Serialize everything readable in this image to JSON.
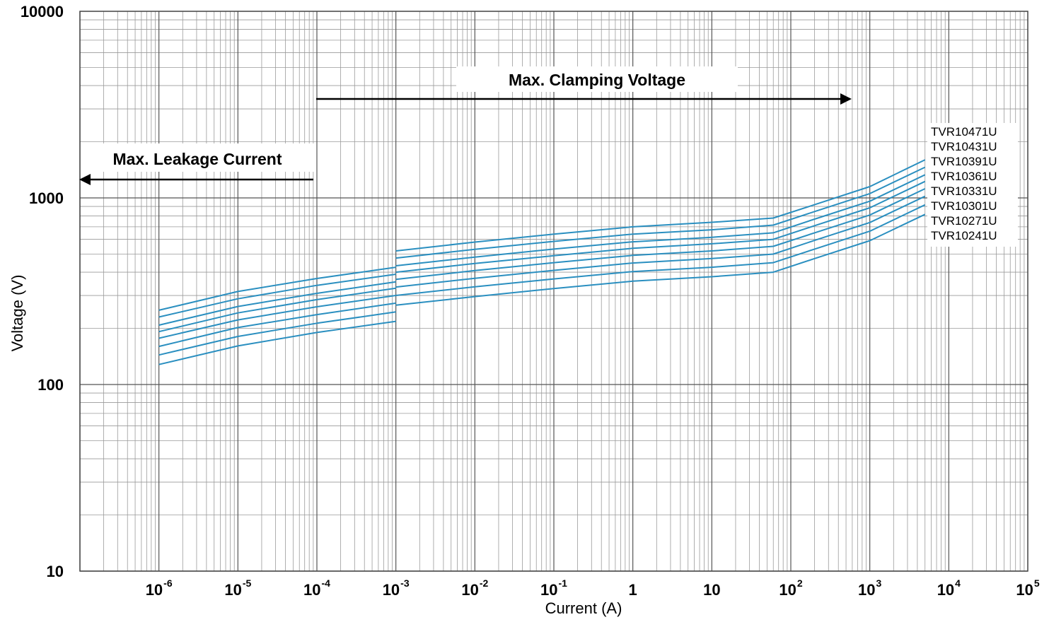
{
  "chart_data": {
    "type": "line",
    "xscale": "log",
    "yscale": "log",
    "xlim": [
      1e-07,
      100000
    ],
    "ylim": [
      10,
      10000
    ],
    "grid": true,
    "xlabel": "Current (A)",
    "ylabel": "Voltage   (V)",
    "y_ticks": [
      {
        "value": 10,
        "label": "10"
      },
      {
        "value": 100,
        "label": "100"
      },
      {
        "value": 1000,
        "label": "1000"
      },
      {
        "value": 10000,
        "label": "10000"
      }
    ],
    "x_ticks": [
      {
        "value": 1e-06,
        "base": "10",
        "exp": "-6"
      },
      {
        "value": 1e-05,
        "base": "10",
        "exp": "-5"
      },
      {
        "value": 0.0001,
        "base": "10",
        "exp": "-4"
      },
      {
        "value": 0.001,
        "base": "10",
        "exp": "-3"
      },
      {
        "value": 0.01,
        "base": "10",
        "exp": "-2"
      },
      {
        "value": 0.1,
        "base": "10",
        "exp": "-1"
      },
      {
        "value": 1,
        "base": "1",
        "exp": ""
      },
      {
        "value": 10,
        "base": "10",
        "exp": ""
      },
      {
        "value": 100,
        "base": "10",
        "exp": "2"
      },
      {
        "value": 1000,
        "base": "10",
        "exp": "3"
      },
      {
        "value": 10000,
        "base": "10",
        "exp": "4"
      },
      {
        "value": 100000,
        "base": "10",
        "exp": "5"
      }
    ],
    "annotations": {
      "clamping": "Max. Clamping Voltage",
      "leakage": "Max. Leakage Current"
    },
    "series_color": "#2a8fc0",
    "series": [
      {
        "name": "TVR10471U",
        "leakage": {
          "x": [
            1e-06,
            1e-05,
            0.0001,
            0.001
          ],
          "y": [
            250,
            315,
            370,
            425
          ]
        },
        "clamping": {
          "x": [
            0.001,
            0.01,
            0.1,
            1,
            10,
            60,
            200,
            1000,
            5000
          ],
          "y": [
            520,
            580,
            640,
            700,
            740,
            780,
            920,
            1150,
            1600
          ]
        }
      },
      {
        "name": "TVR10431U",
        "leakage": {
          "x": [
            1e-06,
            1e-05,
            0.0001,
            0.001
          ],
          "y": [
            230,
            288,
            340,
            390
          ]
        },
        "clamping": {
          "x": [
            0.001,
            0.01,
            0.1,
            1,
            10,
            60,
            200,
            1000,
            5000
          ],
          "y": [
            476,
            530,
            585,
            640,
            675,
            715,
            845,
            1055,
            1460
          ]
        }
      },
      {
        "name": "TVR10391U",
        "leakage": {
          "x": [
            1e-06,
            1e-05,
            0.0001,
            0.001
          ],
          "y": [
            208,
            262,
            308,
            355
          ]
        },
        "clamping": {
          "x": [
            0.001,
            0.01,
            0.1,
            1,
            10,
            60,
            200,
            1000,
            5000
          ],
          "y": [
            433,
            482,
            532,
            582,
            615,
            650,
            770,
            960,
            1330
          ]
        }
      },
      {
        "name": "TVR10361U",
        "leakage": {
          "x": [
            1e-06,
            1e-05,
            0.0001,
            0.001
          ],
          "y": [
            192,
            242,
            285,
            328
          ]
        },
        "clamping": {
          "x": [
            0.001,
            0.01,
            0.1,
            1,
            10,
            60,
            200,
            1000,
            5000
          ],
          "y": [
            400,
            445,
            490,
            537,
            568,
            600,
            710,
            885,
            1225
          ]
        }
      },
      {
        "name": "TVR10331U",
        "leakage": {
          "x": [
            1e-06,
            1e-05,
            0.0001,
            0.001
          ],
          "y": [
            177,
            222,
            261,
            300
          ]
        },
        "clamping": {
          "x": [
            0.001,
            0.01,
            0.1,
            1,
            10,
            60,
            200,
            1000,
            5000
          ],
          "y": [
            366,
            408,
            450,
            492,
            520,
            550,
            650,
            810,
            1120
          ]
        }
      },
      {
        "name": "TVR10301U",
        "leakage": {
          "x": [
            1e-06,
            1e-05,
            0.0001,
            0.001
          ],
          "y": [
            160,
            202,
            237,
            273
          ]
        },
        "clamping": {
          "x": [
            0.001,
            0.01,
            0.1,
            1,
            10,
            60,
            200,
            1000,
            5000
          ],
          "y": [
            333,
            371,
            409,
            448,
            473,
            500,
            592,
            738,
            1020
          ]
        }
      },
      {
        "name": "TVR10271U",
        "leakage": {
          "x": [
            1e-06,
            1e-05,
            0.0001,
            0.001
          ],
          "y": [
            144,
            181,
            213,
            245
          ]
        },
        "clamping": {
          "x": [
            0.001,
            0.01,
            0.1,
            1,
            10,
            60,
            200,
            1000,
            5000
          ],
          "y": [
            300,
            334,
            368,
            403,
            425,
            450,
            532,
            663,
            918
          ]
        }
      },
      {
        "name": "TVR10241U",
        "leakage": {
          "x": [
            1e-06,
            1e-05,
            0.0001,
            0.001
          ],
          "y": [
            128,
            161,
            190,
            218
          ]
        },
        "clamping": {
          "x": [
            0.001,
            0.01,
            0.1,
            1,
            10,
            60,
            200,
            1000,
            5000
          ],
          "y": [
            266,
            296,
            327,
            358,
            378,
            400,
            473,
            590,
            816
          ]
        }
      }
    ]
  }
}
